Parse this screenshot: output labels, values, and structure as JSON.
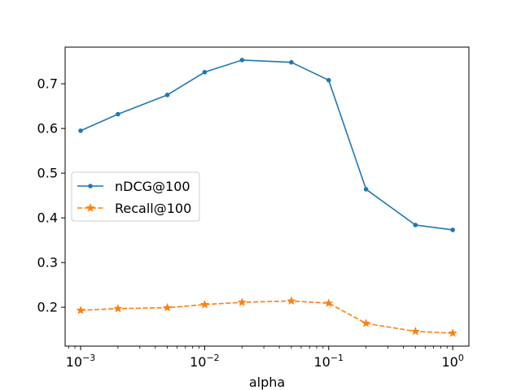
{
  "chart_data": {
    "type": "line",
    "title": "",
    "xlabel": "alpha",
    "ylabel": "",
    "xscale": "log",
    "xlim": [
      0.00075,
      1.35
    ],
    "ylim": [
      0.113,
      0.782
    ],
    "grid": false,
    "legend_position": "center-left",
    "x": [
      0.001,
      0.002,
      0.005,
      0.01,
      0.02,
      0.05,
      0.1,
      0.2,
      0.5,
      1
    ],
    "x_ticks": [
      0.001,
      0.01,
      0.1,
      1
    ],
    "x_tick_labels": [
      {
        "base": "10",
        "exp": "−3"
      },
      {
        "base": "10",
        "exp": "−2"
      },
      {
        "base": "10",
        "exp": "−1"
      },
      {
        "base": "10",
        "exp": "0"
      }
    ],
    "y_ticks": [
      0.2,
      0.3,
      0.4,
      0.5,
      0.6,
      0.7
    ],
    "y_tick_labels": [
      "0.2",
      "0.3",
      "0.4",
      "0.5",
      "0.6",
      "0.7"
    ],
    "series": [
      {
        "name": "nDCG@100",
        "color": "#1f77b4",
        "linestyle": "solid",
        "marker": "dot",
        "values": [
          0.595,
          0.632,
          0.675,
          0.726,
          0.753,
          0.748,
          0.708,
          0.464,
          0.384,
          0.373
        ]
      },
      {
        "name": "Recall@100",
        "color": "#ff7f0e",
        "linestyle": "dashed",
        "marker": "star",
        "values": [
          0.193,
          0.197,
          0.199,
          0.206,
          0.211,
          0.214,
          0.209,
          0.164,
          0.146,
          0.142
        ]
      }
    ]
  }
}
